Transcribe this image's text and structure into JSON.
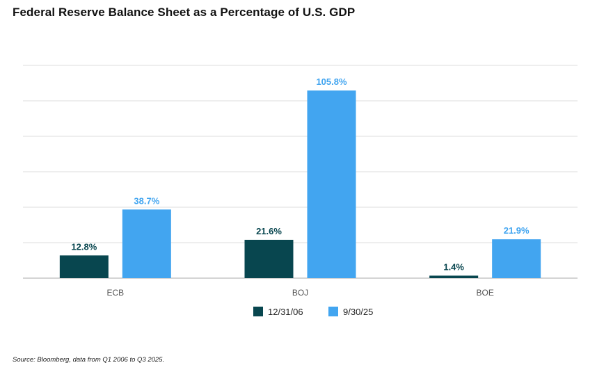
{
  "title": "Federal Reserve Balance Sheet as a Percentage of U.S. GDP",
  "source": "Source: Bloomberg, data from Q1 2006 to Q3 2025.",
  "chart_data": {
    "type": "bar",
    "categories": [
      "ECB",
      "BOJ",
      "BOE"
    ],
    "series": [
      {
        "name": "12/31/06",
        "values": [
          12.8,
          21.6,
          1.4
        ],
        "labels": [
          "12.8%",
          "21.6%",
          "1.4%"
        ],
        "color": "#08464f"
      },
      {
        "name": "9/30/25",
        "values": [
          38.7,
          105.8,
          21.9
        ],
        "labels": [
          "38.7%",
          "105.8%",
          "21.9%"
        ],
        "color": "#42a5f0"
      }
    ],
    "ylim": [
      0,
      120
    ],
    "grid": true,
    "legend": "bottom-center",
    "gridline_color": "#dddddd",
    "axis_color": "#bbbbbb",
    "category_label_color": "#555555"
  }
}
